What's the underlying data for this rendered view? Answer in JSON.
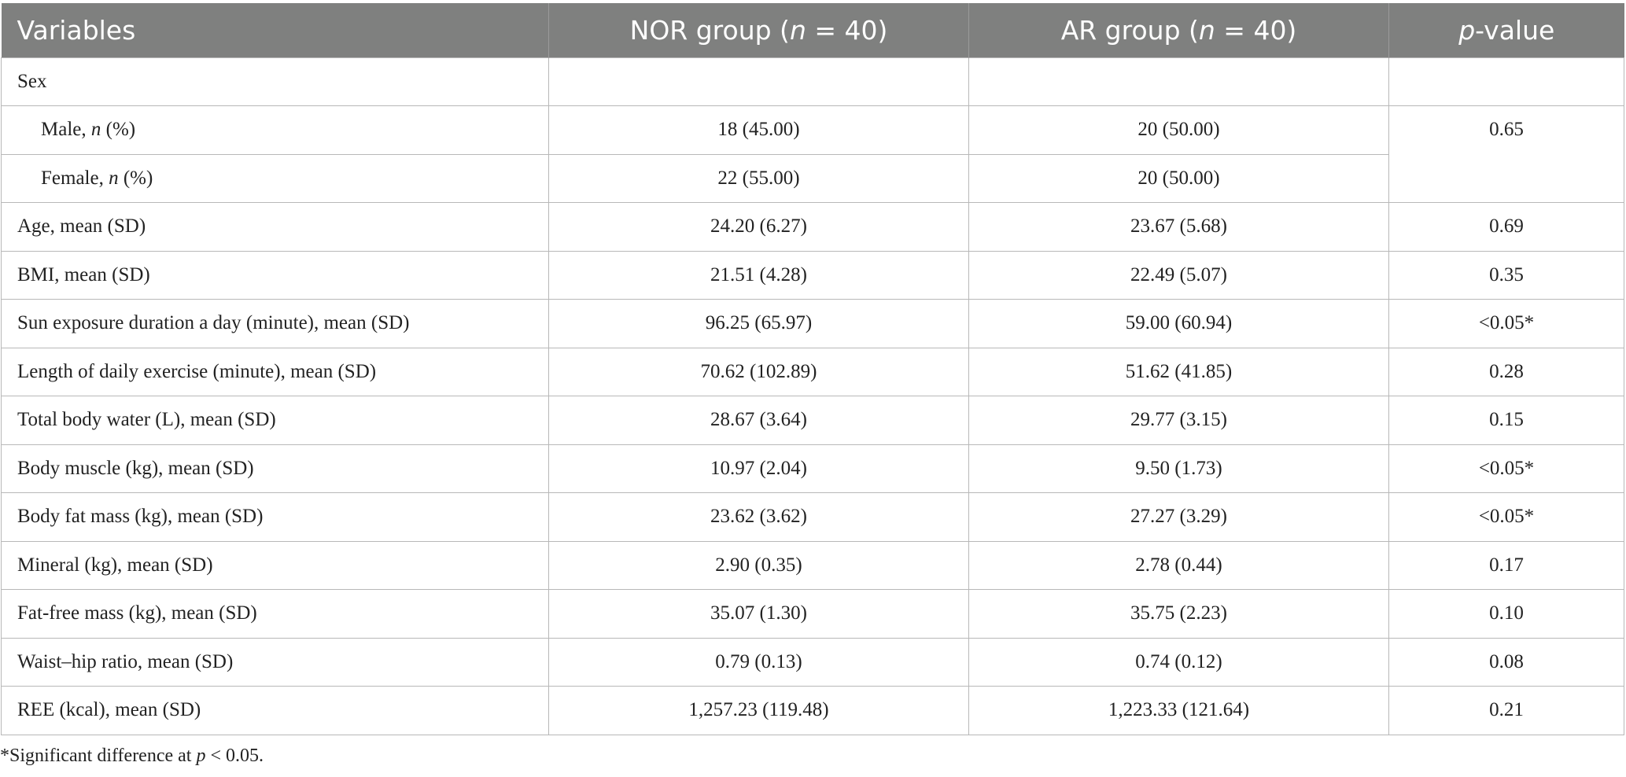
{
  "table": {
    "headers": {
      "variables": "Variables",
      "nor_group": "NOR group (",
      "nor_n": "n",
      "nor_eq": " = 40)",
      "ar_group": "AR group (",
      "ar_n": "n",
      "ar_eq": " = 40)",
      "p_p": "p",
      "p_rest": "-value"
    },
    "rows": [
      {
        "label": "Sex",
        "nor": "",
        "ar": "",
        "p": ""
      },
      {
        "label_pre": "Male, ",
        "label_it": "n",
        "label_post": " (%)",
        "nor": "18 (45.00)",
        "ar": "20 (50.00)",
        "p": "0.65"
      },
      {
        "label_pre": "Female, ",
        "label_it": "n",
        "label_post": " (%)",
        "nor": "22 (55.00)",
        "ar": "20 (50.00)"
      },
      {
        "label": "Age, mean (SD)",
        "nor": "24.20 (6.27)",
        "ar": "23.67 (5.68)",
        "p": "0.69"
      },
      {
        "label": "BMI, mean (SD)",
        "nor": "21.51 (4.28)",
        "ar": "22.49 (5.07)",
        "p": "0.35"
      },
      {
        "label": "Sun exposure duration a day (minute), mean (SD)",
        "nor": "96.25 (65.97)",
        "ar": "59.00 (60.94)",
        "p": "<0.05*"
      },
      {
        "label": "Length of daily exercise (minute), mean (SD)",
        "nor": "70.62 (102.89)",
        "ar": "51.62 (41.85)",
        "p": "0.28"
      },
      {
        "label": "Total body water (L), mean (SD)",
        "nor": "28.67 (3.64)",
        "ar": "29.77 (3.15)",
        "p": "0.15"
      },
      {
        "label": "Body muscle (kg), mean (SD)",
        "nor": "10.97 (2.04)",
        "ar": "9.50 (1.73)",
        "p": "<0.05*"
      },
      {
        "label": "Body fat mass (kg), mean (SD)",
        "nor": "23.62 (3.62)",
        "ar": "27.27 (3.29)",
        "p": "<0.05*"
      },
      {
        "label": "Mineral (kg), mean (SD)",
        "nor": "2.90 (0.35)",
        "ar": "2.78 (0.44)",
        "p": "0.17"
      },
      {
        "label": "Fat-free mass (kg), mean (SD)",
        "nor": "35.07 (1.30)",
        "ar": "35.75 (2.23)",
        "p": "0.10"
      },
      {
        "label": "Waist–hip ratio, mean (SD)",
        "nor": "0.79 (0.13)",
        "ar": "0.74 (0.12)",
        "p": "0.08"
      },
      {
        "label": "REE (kcal), mean (SD)",
        "nor": "1,257.23 (119.48)",
        "ar": "1,223.33 (121.64)",
        "p": "0.21"
      }
    ]
  },
  "footnote": {
    "pre": "*Significant difference at ",
    "p": "p",
    "post": " < 0.05."
  }
}
